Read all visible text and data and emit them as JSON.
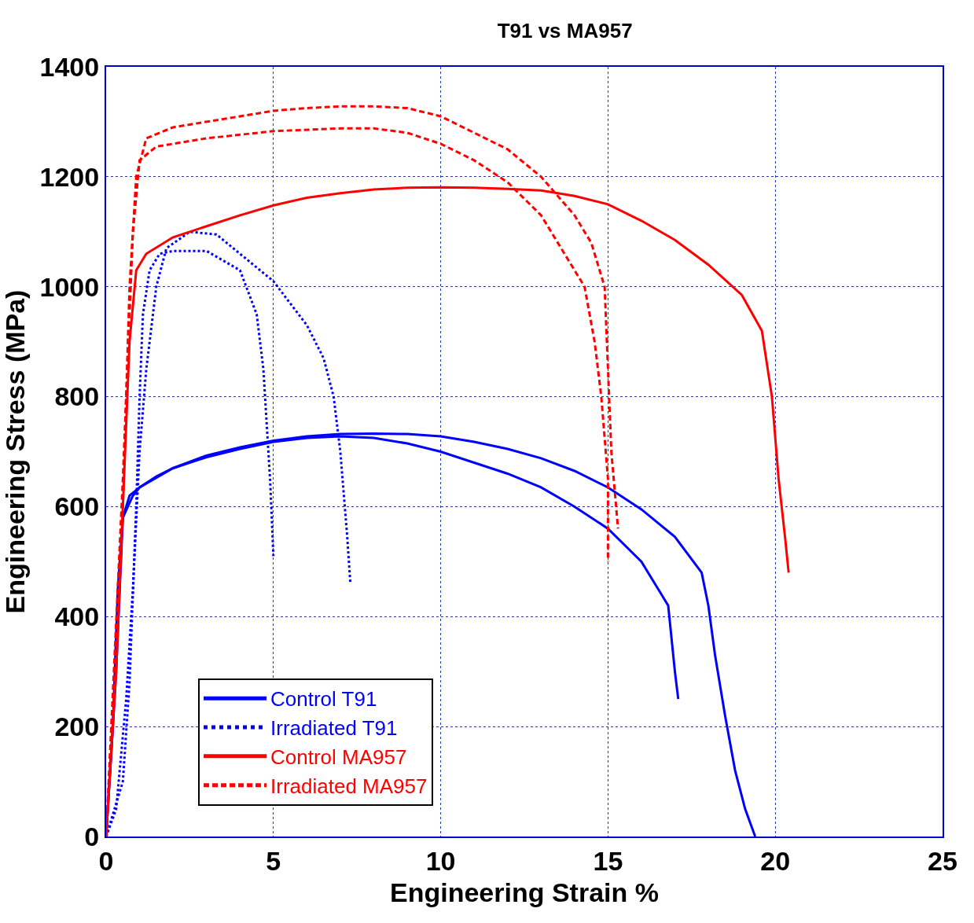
{
  "chart_data": {
    "type": "line",
    "title": "T91 vs MA957",
    "xlabel": "Engineering Strain %",
    "ylabel": "Engineering Stress (MPa)",
    "xlim": [
      0,
      25
    ],
    "xticks": [
      0,
      5,
      10,
      15,
      20,
      25
    ],
    "ylim": [
      0,
      1400
    ],
    "yticks": [
      0,
      200,
      400,
      600,
      800,
      1000,
      1200,
      1400
    ],
    "grid": true,
    "legend": "bottom left",
    "marker": "none",
    "series": [
      {
        "name": "Control T91",
        "color": "#0000ff",
        "line_style": "solid",
        "x": [
          0,
          0.2,
          0.35,
          0.5,
          0.7,
          1,
          1.5,
          2,
          3,
          4,
          5,
          6,
          7,
          8,
          9,
          10,
          11,
          12,
          13,
          14,
          15,
          16,
          16.6,
          16.8,
          17,
          17.1
        ],
        "values": [
          0,
          200,
          450,
          580,
          620,
          635,
          655,
          670,
          690,
          705,
          718,
          725,
          728,
          725,
          715,
          700,
          680,
          660,
          635,
          600,
          560,
          500,
          440,
          420,
          300,
          250
        ]
      },
      {
        "color": "#0000ff",
        "line_style": "solid",
        "x": [
          0,
          0.3,
          0.5,
          0.8,
          1,
          2,
          3,
          4,
          5,
          6,
          7,
          8,
          9,
          10,
          11,
          12,
          13,
          14,
          15,
          16,
          17,
          17.8,
          18,
          18.2,
          18.5,
          18.8,
          19.1,
          19.4
        ],
        "values": [
          0,
          300,
          580,
          620,
          635,
          670,
          693,
          708,
          720,
          728,
          732,
          733,
          732,
          728,
          718,
          705,
          688,
          665,
          635,
          595,
          545,
          480,
          420,
          330,
          220,
          120,
          50,
          0
        ]
      },
      {
        "name": "Irradiated T91",
        "color": "#0000ff",
        "line_style": "dotted",
        "x": [
          0,
          0.5,
          0.7,
          0.9,
          1.0,
          1.1,
          1.3,
          1.6,
          2,
          3,
          4,
          4.5,
          4.7,
          4.8,
          4.9,
          5.0
        ],
        "values": [
          0,
          100,
          280,
          600,
          800,
          950,
          1030,
          1060,
          1065,
          1065,
          1030,
          950,
          850,
          750,
          650,
          510
        ]
      },
      {
        "color": "#0000ff",
        "line_style": "dotted",
        "x": [
          0,
          0.3,
          0.6,
          0.8,
          1.0,
          1.2,
          1.5,
          1.8,
          2.5,
          3.3,
          4,
          5,
          6,
          6.5,
          6.8,
          7.0,
          7.2,
          7.3
        ],
        "values": [
          0,
          50,
          250,
          450,
          700,
          850,
          1000,
          1070,
          1100,
          1095,
          1060,
          1010,
          930,
          870,
          800,
          700,
          550,
          460
        ]
      },
      {
        "name": "Control MA957",
        "color": "#ff0000",
        "line_style": "solid",
        "x": [
          0,
          0.3,
          0.5,
          0.7,
          0.9,
          1.2,
          2,
          3,
          4,
          5,
          6,
          7,
          8,
          9,
          10,
          11,
          12,
          13,
          14,
          15,
          16,
          17,
          18,
          19,
          19.6,
          19.9,
          20.1,
          20.3,
          20.4
        ],
        "values": [
          0,
          300,
          600,
          900,
          1030,
          1060,
          1090,
          1110,
          1130,
          1148,
          1162,
          1170,
          1177,
          1180,
          1181,
          1180,
          1178,
          1175,
          1165,
          1150,
          1120,
          1085,
          1040,
          985,
          920,
          800,
          650,
          540,
          480
        ]
      },
      {
        "name": "Irradiated MA957",
        "color": "#ff0000",
        "line_style": "dashed",
        "x": [
          0,
          0.5,
          0.7,
          0.9,
          1.2,
          2,
          4,
          5,
          6,
          7,
          8,
          9,
          10,
          11,
          12,
          13,
          14,
          14.5,
          14.9,
          15.0,
          15.1,
          15.3
        ],
        "values": [
          0,
          600,
          1000,
          1200,
          1270,
          1290,
          1310,
          1320,
          1325,
          1328,
          1328,
          1325,
          1310,
          1280,
          1250,
          1200,
          1130,
          1080,
          1000,
          850,
          700,
          560
        ]
      },
      {
        "color": "#ff0000",
        "line_style": "dashed",
        "x": [
          0,
          0.5,
          0.8,
          1,
          1.5,
          3,
          5,
          7,
          8,
          9,
          10,
          11,
          12,
          13,
          13.7,
          14.3,
          14.6,
          14.8,
          15.0,
          15.0
        ],
        "values": [
          0,
          650,
          1100,
          1230,
          1255,
          1270,
          1283,
          1288,
          1288,
          1280,
          1260,
          1230,
          1190,
          1130,
          1060,
          1000,
          900,
          800,
          650,
          500
        ]
      }
    ]
  }
}
